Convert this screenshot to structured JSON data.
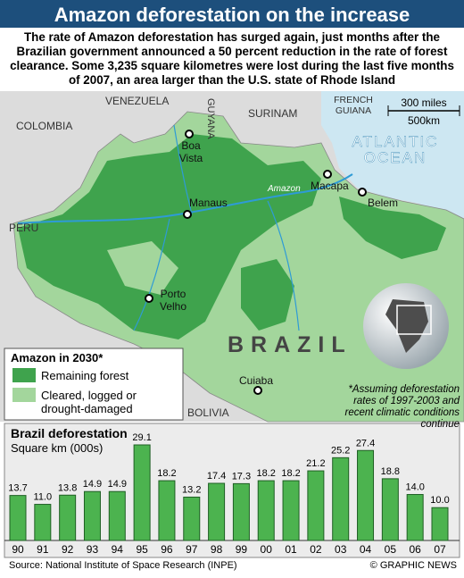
{
  "header": {
    "title": "Amazon deforestation on the increase",
    "intro": "The rate of Amazon deforestation has surged again, just months after the Brazilian government announced a 50 percent reduction in the rate of forest clearance. Some 3,235 square kilometres were lost during the last five months of 2007, an area larger than the U.S. state of Rhode Island"
  },
  "map": {
    "countries": [
      "VENEZUELA",
      "GUYANA",
      "SURINAM",
      "FRENCH GUIANA",
      "COLOMBIA",
      "PERU",
      "BRAZIL",
      "BOLIVIA"
    ],
    "ocean": "ATLANTIC OCEAN",
    "river": "Amazon",
    "cities": [
      "Boa Vista",
      "Manaus",
      "Macapa",
      "Belem",
      "Porto Velho",
      "Cuiaba"
    ],
    "scale": [
      "300 miles",
      "500km"
    ],
    "legend": {
      "title": "Amazon in 2030*",
      "items": [
        "Remaining forest",
        "Cleared, logged or drought-damaged"
      ]
    },
    "footnote": "*Assuming deforestation rates of 1997-2003 and recent climatic conditions continue"
  },
  "chart_data": {
    "type": "bar",
    "title": "Brazil deforestation",
    "subtitle": "Square km (000s)",
    "categories": [
      "90",
      "91",
      "92",
      "93",
      "94",
      "95",
      "96",
      "97",
      "98",
      "99",
      "00",
      "01",
      "02",
      "03",
      "04",
      "05",
      "06",
      "07"
    ],
    "values": [
      13.7,
      11.0,
      13.8,
      14.9,
      14.9,
      29.1,
      18.2,
      13.2,
      17.4,
      17.3,
      18.2,
      18.2,
      21.2,
      25.2,
      27.4,
      18.8,
      14.0,
      10.0
    ],
    "value_labels": [
      "13.7",
      "11.0",
      "13.8",
      "14.9",
      "14.9",
      "29.1",
      "18.2",
      "13.2",
      "17.4",
      "17.3",
      "18.2",
      "18.2",
      "21.2",
      "25.2",
      "27.4",
      "18.8",
      "14.0",
      "10.0"
    ],
    "color": "#4cb34f"
  },
  "footer": {
    "source": "Source: National Institute of Space Research (INPE)",
    "credit": "© GRAPHIC NEWS"
  }
}
